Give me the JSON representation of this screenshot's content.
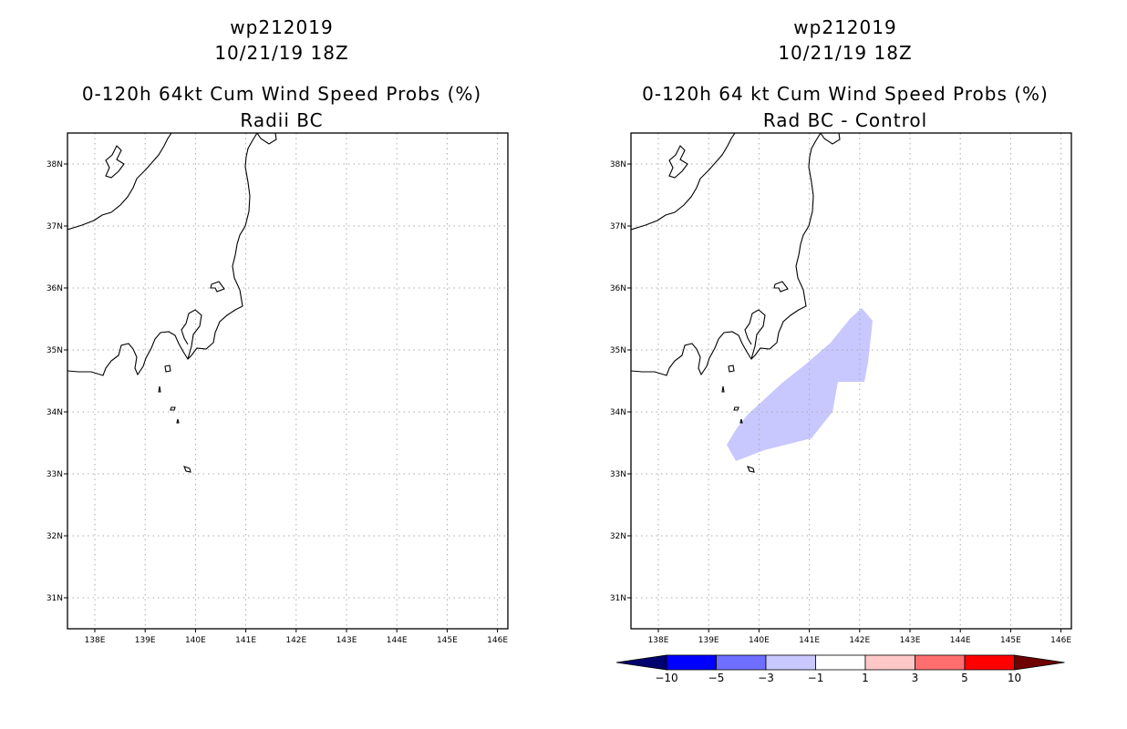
{
  "left_panel": {
    "title_line1": "wp212019",
    "title_line2": "10/21/19 18Z",
    "title_line3": "0-120h 64kt Cum Wind Speed Probs (%)",
    "title_line4": "Radii BC"
  },
  "right_panel": {
    "title_line1": "wp212019",
    "title_line2": "10/21/19 18Z",
    "title_line3": "0-120h 64 kt Cum Wind Speed Probs (%)",
    "title_line4": "Rad BC - Control",
    "shaded_area_bin": "-3 to -1",
    "shaded_area_color": "#c8c8ff"
  },
  "map_axes": {
    "lon_labels": [
      "138E",
      "139E",
      "140E",
      "141E",
      "142E",
      "143E",
      "144E",
      "145E",
      "146E"
    ],
    "lat_labels": [
      "38N",
      "37N",
      "36N",
      "35N",
      "34N",
      "33N",
      "32N",
      "31N"
    ]
  },
  "colorbar": {
    "labels": [
      "-10",
      "-5",
      "-3",
      "-1",
      "1",
      "3",
      "5",
      "10"
    ],
    "colors": [
      "#00006e",
      "#0000ff",
      "#6e6eff",
      "#c8c8ff",
      "#ffffff",
      "#ffc8c8",
      "#ff6e6e",
      "#ff0000",
      "#6e0000"
    ]
  },
  "colors": {
    "grid": "#aaaaaa",
    "coast": "#000000"
  }
}
